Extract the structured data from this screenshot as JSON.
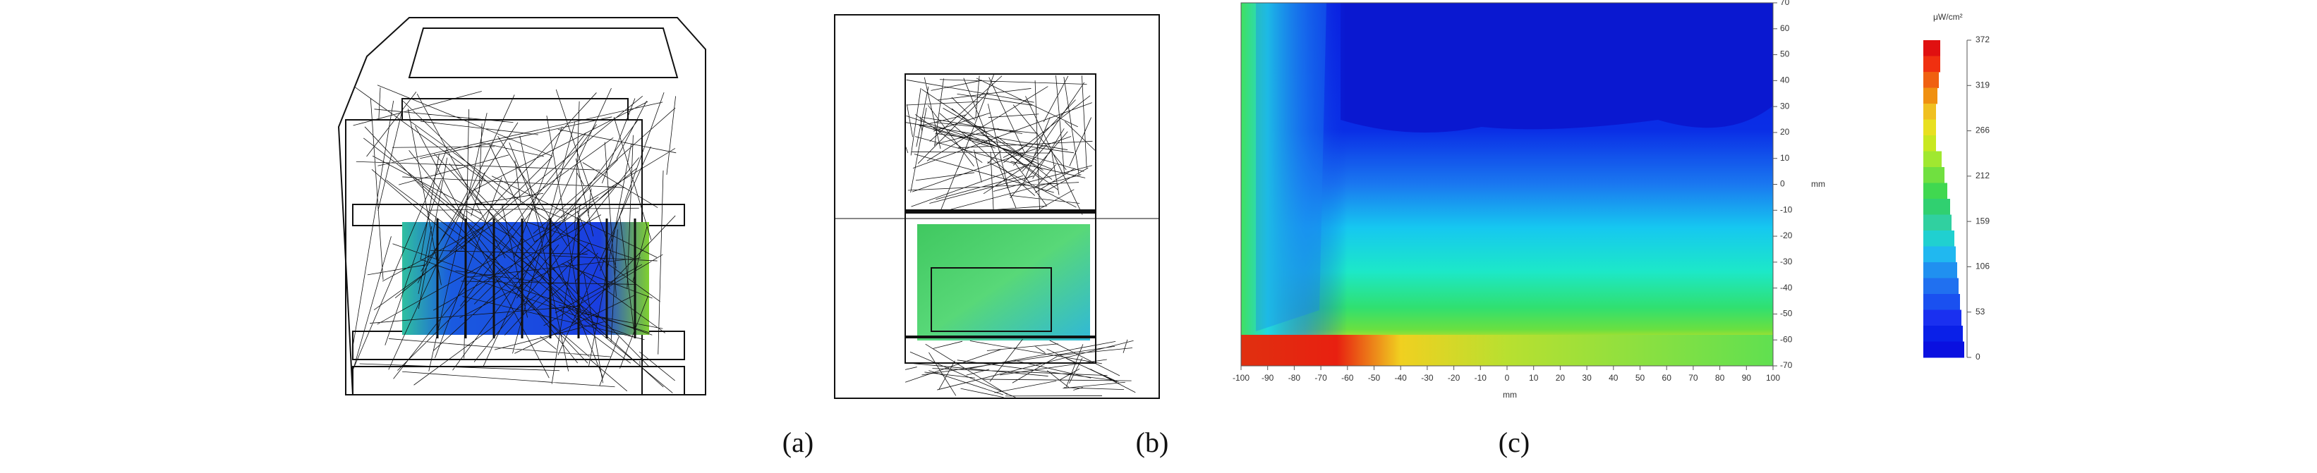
{
  "panels": [
    {
      "label": "(a)"
    },
    {
      "label": "(b)"
    },
    {
      "label": "(c)"
    }
  ],
  "heatmap": {
    "x_label": "mm",
    "y_label": "mm",
    "x_ticks": [
      "-100",
      "-90",
      "-80",
      "-70",
      "-60",
      "-50",
      "-40",
      "-30",
      "-20",
      "-10",
      "0",
      "10",
      "20",
      "30",
      "40",
      "50",
      "60",
      "70",
      "80",
      "90",
      "100"
    ],
    "y_ticks": [
      "70",
      "60",
      "50",
      "40",
      "30",
      "20",
      "10",
      "0",
      "-10",
      "-20",
      "-30",
      "-40",
      "-50",
      "-60",
      "-70"
    ]
  },
  "colorbar": {
    "unit": "μW/cm²",
    "ticks": [
      "372",
      "319",
      "266",
      "212",
      "159",
      "106",
      "53",
      "0"
    ]
  }
}
